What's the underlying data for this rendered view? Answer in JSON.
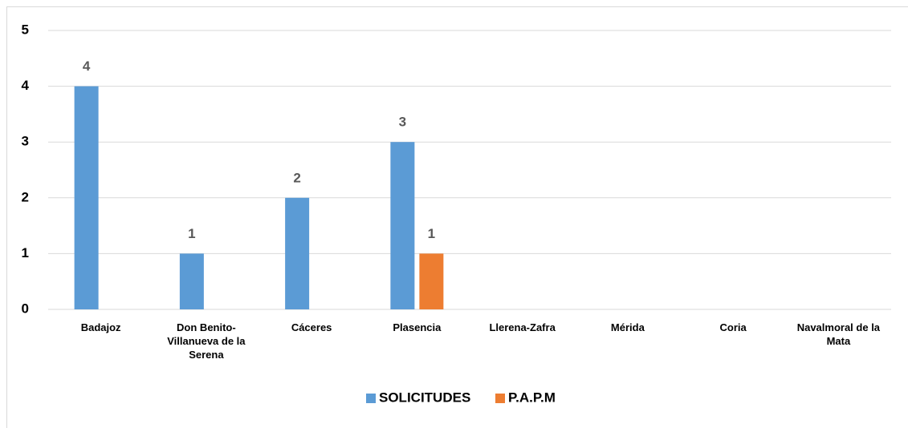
{
  "chart_data": {
    "type": "bar",
    "categories": [
      "Badajoz",
      "Don Benito-Villanueva de la Serena",
      "Cáceres",
      "Plasencia",
      "Llerena-Zafra",
      "Mérida",
      "Coria",
      "Navalmoral de la Mata"
    ],
    "series": [
      {
        "name": "SOLICITUDES",
        "color": "#5b9bd5",
        "values": [
          4,
          1,
          2,
          3,
          null,
          null,
          null,
          null
        ]
      },
      {
        "name": "P.A.P.M",
        "color": "#ed7d31",
        "values": [
          null,
          null,
          null,
          1,
          null,
          null,
          null,
          null
        ]
      }
    ],
    "ylim": [
      0,
      5
    ],
    "yticks": [
      0,
      1,
      2,
      3,
      4,
      5
    ],
    "grid": true,
    "legend": "bottom"
  }
}
